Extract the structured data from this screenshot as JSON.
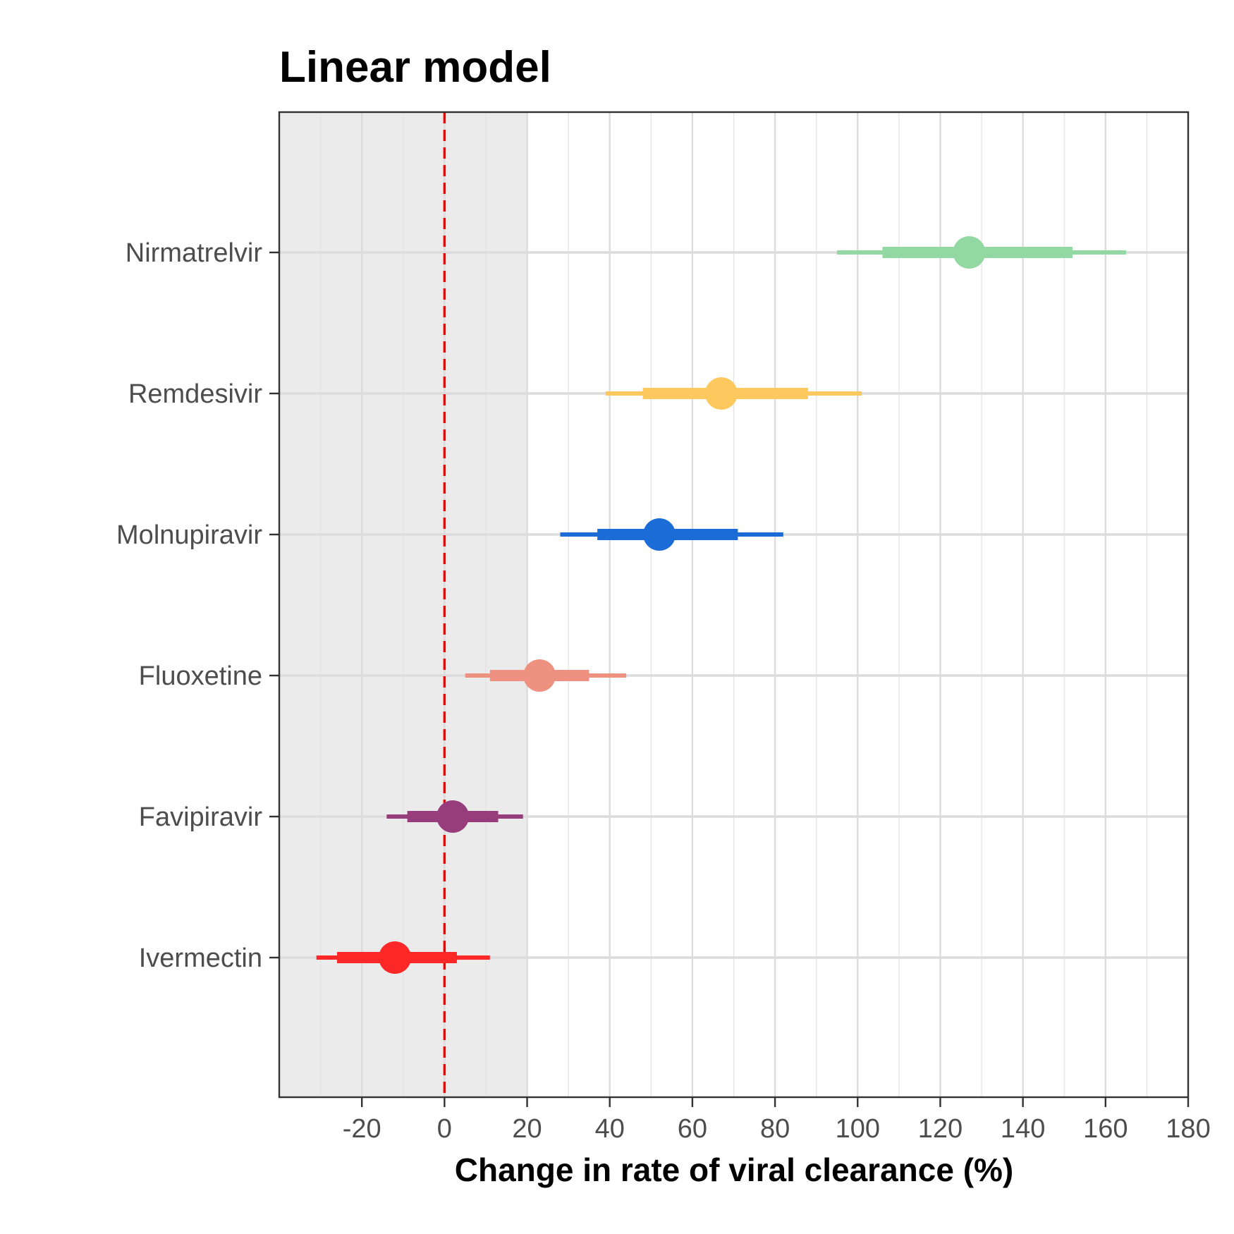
{
  "chart_data": {
    "type": "forest",
    "title": "Linear model",
    "xlabel": "Change in rate of viral clearance (%)",
    "ylabel": "",
    "xlim": [
      -40,
      180
    ],
    "xticks": [
      -20,
      0,
      20,
      40,
      60,
      80,
      100,
      120,
      140,
      160,
      180
    ],
    "reference_line": {
      "x": 0,
      "color": "#ff0000",
      "style": "dashed"
    },
    "shaded_region": {
      "x_from": -40,
      "x_to": 20,
      "color": "#ebebeb"
    },
    "grid": true,
    "categories": [
      "Nirmatrelvir",
      "Remdesivir",
      "Molnupiravir",
      "Fluoxetine",
      "Favipiravir",
      "Ivermectin"
    ],
    "series": [
      {
        "label": "Nirmatrelvir",
        "estimate": 127,
        "ci80": [
          106,
          152
        ],
        "ci95": [
          95,
          165
        ],
        "color": "#92d8a3"
      },
      {
        "label": "Remdesivir",
        "estimate": 67,
        "ci80": [
          48,
          88
        ],
        "ci95": [
          39,
          101
        ],
        "color": "#fdc95f"
      },
      {
        "label": "Molnupiravir",
        "estimate": 52,
        "ci80": [
          37,
          71
        ],
        "ci95": [
          28,
          82
        ],
        "color": "#1b6cd6"
      },
      {
        "label": "Fluoxetine",
        "estimate": 23,
        "ci80": [
          11,
          35
        ],
        "ci95": [
          5,
          44
        ],
        "color": "#ee9180"
      },
      {
        "label": "Favipiravir",
        "estimate": 2,
        "ci80": [
          -9,
          13
        ],
        "ci95": [
          -14,
          19
        ],
        "color": "#983d7c"
      },
      {
        "label": "Ivermectin",
        "estimate": -12,
        "ci80": [
          -26,
          3
        ],
        "ci95": [
          -31,
          11
        ],
        "color": "#fc2727"
      }
    ]
  }
}
